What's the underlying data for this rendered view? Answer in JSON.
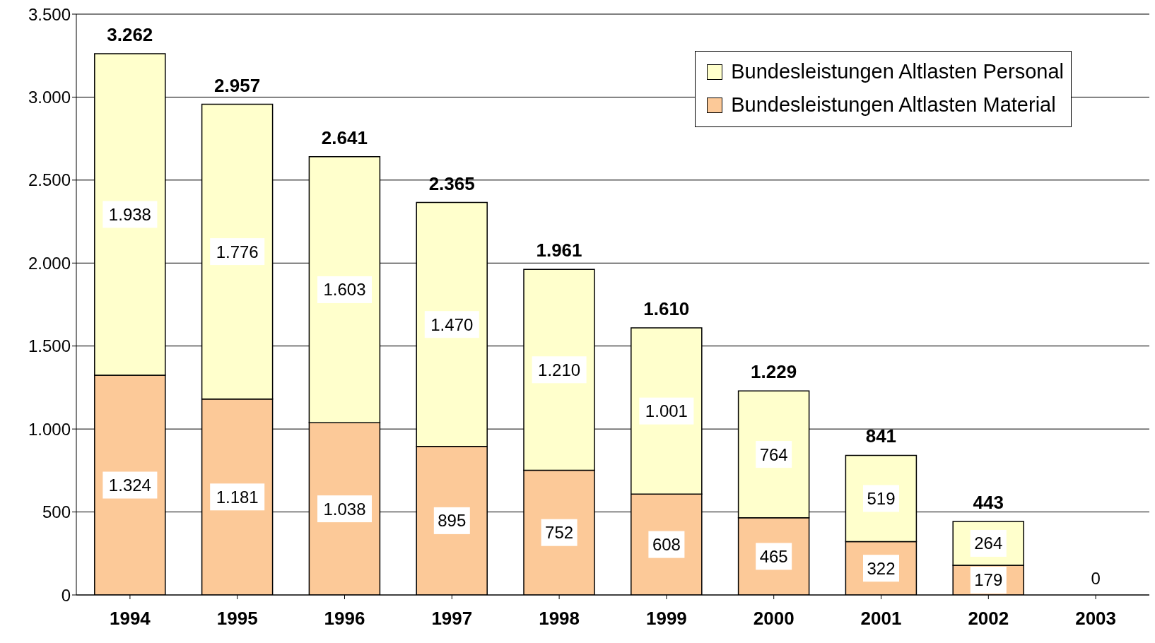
{
  "chart_data": {
    "type": "bar",
    "stacked": true,
    "categories": [
      "1994",
      "1995",
      "1996",
      "1997",
      "1998",
      "1999",
      "2000",
      "2001",
      "2002",
      "2003"
    ],
    "series": [
      {
        "name": "Bundesleistungen Altlasten Material",
        "color": "#fcc998",
        "values": [
          1324,
          1181,
          1038,
          895,
          752,
          608,
          465,
          322,
          179,
          0
        ],
        "value_labels": [
          "1.324",
          "1.181",
          "1.038",
          "895",
          "752",
          "608",
          "465",
          "322",
          "179",
          "0"
        ]
      },
      {
        "name": "Bundesleistungen Altlasten Personal",
        "color": "#ffffcc",
        "values": [
          1938,
          1776,
          1603,
          1470,
          1210,
          1001,
          764,
          519,
          264,
          0
        ],
        "value_labels": [
          "1.938",
          "1.776",
          "1.603",
          "1.470",
          "1.210",
          "1.001",
          "764",
          "519",
          "264",
          null
        ]
      }
    ],
    "totals": [
      "3.262",
      "2.957",
      "2.641",
      "2.365",
      "1.961",
      "1.610",
      "1.229",
      "841",
      "443",
      null
    ],
    "ylim": [
      0,
      3500
    ],
    "yticks": [
      {
        "value": 0,
        "label": "0"
      },
      {
        "value": 500,
        "label": "500"
      },
      {
        "value": 1000,
        "label": "1.000"
      },
      {
        "value": 1500,
        "label": "1.500"
      },
      {
        "value": 2000,
        "label": "2.000"
      },
      {
        "value": 2500,
        "label": "2.500"
      },
      {
        "value": 3000,
        "label": "3.000"
      },
      {
        "value": 3500,
        "label": "3.500"
      }
    ],
    "grid": "y",
    "legend": "top right"
  }
}
